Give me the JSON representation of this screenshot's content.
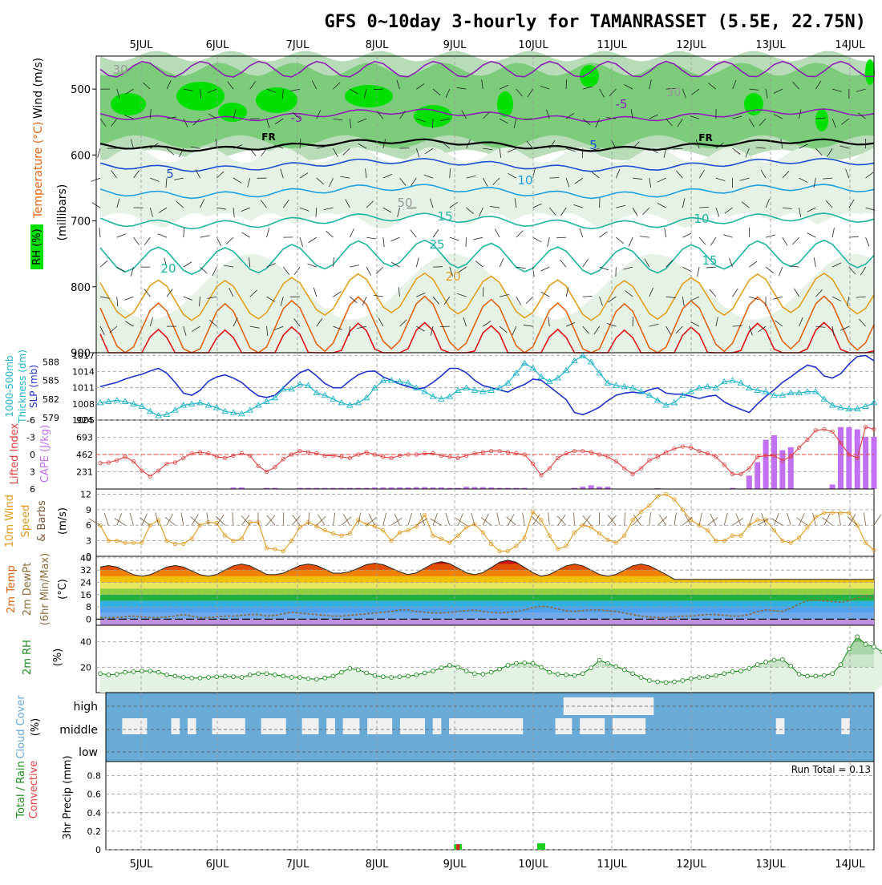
{
  "title": "GFS 0~10day 3-hourly for TAMANRASSET (5.5E, 22.75N)",
  "dates": [
    "5JUL",
    "6JUL",
    "7JUL",
    "8JUL",
    "9JUL",
    "10JUL",
    "11JUL",
    "12JUL",
    "13JUL",
    "14JUL"
  ],
  "colors": {
    "rh_dark": "#00e000",
    "rh_mid": "#7ccc7c",
    "rh_light": "#b8dcb8",
    "rh_pale": "#e6f2e6",
    "temp_purple": "#8c1fb4",
    "temp_blue": "#1e50d2",
    "temp_cyan": "#1ea0e0",
    "temp_teal": "#1eb4a0",
    "temp_gold": "#e0a020",
    "temp_orange": "#e06414",
    "temp_red": "#e01414",
    "slp": "#1e32c8",
    "thick": "#20b4c8",
    "li": "#e04040",
    "cape": "#c070f0",
    "wind10": "#e09a20",
    "dewpt": "#8c6a3c",
    "rh2m": "#208c20",
    "cloud": "#6aaad6",
    "cloud_clear": "#f0f0f0"
  },
  "chart_data": [
    {
      "type": "heatmap",
      "name": "upper_air",
      "ylabels": [
        "Temperature (°C)",
        "Wind (m/s)",
        "(millibars)",
        "RH (%)"
      ],
      "ylim": [
        900,
        450
      ],
      "yticks": [
        500,
        600,
        700,
        800,
        900
      ],
      "isotherm_labels": [
        "-5",
        "FR",
        "5",
        "10",
        "15",
        "20",
        "25",
        "FR",
        "-5",
        "5",
        "10",
        "15",
        "20",
        "30",
        "30",
        "50"
      ],
      "isotherms": [
        {
          "level": -5,
          "base": 540,
          "amp": 10
        },
        {
          "level": 0,
          "base": 585,
          "amp": 8
        },
        {
          "level": 5,
          "base": 615,
          "amp": 10
        },
        {
          "level": 10,
          "base": 655,
          "amp": 12
        },
        {
          "level": 15,
          "base": 700,
          "amp": 15
        },
        {
          "level": 20,
          "base": 755,
          "amp": 20
        },
        {
          "level": 25,
          "base": 815,
          "amp": 30
        },
        {
          "level": 30,
          "base": 860,
          "amp": 40
        },
        {
          "level": 35,
          "base": 900,
          "amp": 40
        }
      ]
    },
    {
      "type": "line",
      "name": "slp_thickness",
      "ylabels": [
        "1000-500mb",
        "Thickness (dm)",
        "SLP (mb)"
      ],
      "left_ticks": [
        "579",
        "582",
        "585",
        "588"
      ],
      "right_ticks": [
        "1005",
        "1008",
        "1011",
        "1014",
        "1017"
      ],
      "slp_range": [
        1005,
        1017.5
      ],
      "slp": [
        1011.2,
        1011.6,
        1012.0,
        1012.6,
        1013.1,
        1013.5,
        1014.1,
        1014.6,
        1013.7,
        1012.0,
        1010.0,
        1009.6,
        1010.5,
        1012.2,
        1013.0,
        1013.4,
        1012.8,
        1012.0,
        1010.6,
        1009.5,
        1009.2,
        1009.6,
        1011.0,
        1012.5,
        1013.8,
        1014.4,
        1013.2,
        1011.8,
        1011.0,
        1011.0,
        1012.3,
        1013.4,
        1014.0,
        1014.1,
        1013.0,
        1012.4,
        1011.7,
        1011.2,
        1010.8,
        1011.0,
        1012.0,
        1013.2,
        1014.6,
        1014.6,
        1013.8,
        1012.4,
        1011.4,
        1011.0,
        1010.6,
        1010.2,
        1011.0,
        1011.6,
        1012.6,
        1012.4,
        1011.2,
        1010.0,
        1008.8,
        1006.4,
        1006.0,
        1006.6,
        1007.4,
        1008.6,
        1009.6,
        1010.0,
        1010.2,
        1010.0,
        1010.6,
        1011.0,
        1010.0,
        1009.8,
        1009.8,
        1009.4,
        1009.0,
        1009.4,
        1009.6,
        1008.4,
        1007.6,
        1007.0,
        1006.4,
        1008.0,
        1009.4,
        1010.6,
        1012.0,
        1013.0,
        1014.2,
        1015.2,
        1014.8,
        1013.2,
        1012.8,
        1013.6,
        1015.4,
        1016.8,
        1017.0,
        1016.0
      ],
      "thick_range": [
        578.6,
        589.5
      ],
      "thickness": [
        581.4,
        581.6,
        581.8,
        581.6,
        581.2,
        580.8,
        580.0,
        579.3,
        579.5,
        580.2,
        581.0,
        581.2,
        581.4,
        581.0,
        580.6,
        580.0,
        579.8,
        579.6,
        580.2,
        581.0,
        581.6,
        582.2,
        583.6,
        583.6,
        584.4,
        584.2,
        583.0,
        582.6,
        582.0,
        581.4,
        581.0,
        581.4,
        582.2,
        583.8,
        585.0,
        585.0,
        584.8,
        584.6,
        583.8,
        583.2,
        582.4,
        582.0,
        582.4,
        583.4,
        583.8,
        583.4,
        583.2,
        583.4,
        583.8,
        584.6,
        586.2,
        587.8,
        587.0,
        585.6,
        584.8,
        585.4,
        586.6,
        588.2,
        589.0,
        588.0,
        586.2,
        584.6,
        584.2,
        584.0,
        583.8,
        583.2,
        582.6,
        581.8,
        581.0,
        581.4,
        582.6,
        583.2,
        583.8,
        584.0,
        583.8,
        584.8,
        585.0,
        584.6,
        583.8,
        583.4,
        583.2,
        582.6,
        582.6,
        583.0,
        583.0,
        583.2,
        583.2,
        582.0,
        581.0,
        580.6,
        580.4,
        580.4,
        580.8,
        581.4
      ]
    },
    {
      "type": "line",
      "name": "lifted_index_cape",
      "ylabels": [
        "Lifted Index",
        "CAPE (J/kg)"
      ],
      "left_ticks": [
        "-6",
        "-3",
        "0",
        "3",
        "6"
      ],
      "right_ticks": [
        "231",
        "462",
        "693",
        "924"
      ],
      "li": [
        1.5,
        1.4,
        1.0,
        0.4,
        1.2,
        2.8,
        3.8,
        2.8,
        1.6,
        1.4,
        0.6,
        -0.2,
        -0.4,
        -0.2,
        0.4,
        0.6,
        0.2,
        -0.2,
        0.2,
        2.0,
        3.0,
        2.2,
        0.8,
        0.0,
        -0.6,
        -0.4,
        -0.2,
        0.2,
        0.2,
        0.4,
        0.6,
        0.0,
        -0.4,
        0.0,
        0.4,
        0.6,
        0.2,
        0.0,
        0.0,
        -0.2,
        -0.2,
        0.2,
        0.4,
        0.6,
        0.2,
        -0.2,
        -0.4,
        -0.6,
        -0.6,
        -0.4,
        -0.2,
        0.0,
        1.6,
        3.6,
        2.4,
        0.6,
        -0.2,
        -0.6,
        -0.6,
        -0.4,
        0.0,
        0.4,
        1.2,
        2.4,
        3.4,
        2.4,
        1.0,
        0.4,
        -0.4,
        -1.0,
        -1.4,
        -1.2,
        -0.6,
        -0.2,
        0.4,
        1.8,
        3.4,
        3.4,
        2.4,
        0.4,
        0.2,
        0.2,
        1.0,
        0.4,
        -1.2,
        -2.6,
        -4.2,
        -4.4,
        -4.0,
        -2.0,
        0.0,
        0.6,
        -4.8,
        -4.4
      ],
      "cape": [
        0,
        0,
        0,
        0,
        0,
        0,
        0,
        0,
        0,
        0,
        0,
        0,
        0,
        0,
        0,
        0,
        20,
        20,
        0,
        0,
        15,
        15,
        0,
        0,
        15,
        15,
        15,
        15,
        15,
        15,
        15,
        15,
        15,
        20,
        20,
        20,
        20,
        20,
        25,
        25,
        20,
        20,
        15,
        15,
        30,
        25,
        25,
        20,
        15,
        15,
        15,
        15,
        0,
        0,
        0,
        0,
        0,
        15,
        30,
        50,
        30,
        30,
        0,
        0,
        0,
        0,
        0,
        10,
        5,
        0,
        0,
        0,
        0,
        0,
        5,
        5,
        15,
        0,
        180,
        360,
        660,
        720,
        520,
        560,
        0,
        0,
        0,
        0,
        60,
        830,
        830,
        800,
        700,
        700
      ]
    },
    {
      "type": "line",
      "name": "wind_10m",
      "ylabels": [
        "10m Wind",
        "Speed",
        "& Barbs",
        "(m/s)"
      ],
      "yticks": [
        "0",
        "3",
        "6",
        "9",
        "12"
      ],
      "ylim": [
        0,
        13
      ],
      "values": [
        6.0,
        3.0,
        3.0,
        2.6,
        2.6,
        2.6,
        6.0,
        7.0,
        3.0,
        2.4,
        2.4,
        3.4,
        6.0,
        6.6,
        6.4,
        4.0,
        3.0,
        3.4,
        6.6,
        6.6,
        1.6,
        1.4,
        1.0,
        3.0,
        5.6,
        6.6,
        5.8,
        5.0,
        4.4,
        4.0,
        4.4,
        7.0,
        6.2,
        5.8,
        5.0,
        3.0,
        4.6,
        5.0,
        5.8,
        8.0,
        4.0,
        3.4,
        2.6,
        4.0,
        5.6,
        6.2,
        4.6,
        2.4,
        1.0,
        1.0,
        2.0,
        3.6,
        8.6,
        7.0,
        4.0,
        1.4,
        2.0,
        4.6,
        6.0,
        5.6,
        4.4,
        3.2,
        2.6,
        4.0,
        7.0,
        8.6,
        9.8,
        11.6,
        12.0,
        11.0,
        9.0,
        7.0,
        6.0,
        5.0,
        3.0,
        3.0,
        4.0,
        4.0,
        6.0,
        7.0,
        7.0,
        5.0,
        3.0,
        2.6,
        3.6,
        5.6,
        7.6,
        8.4,
        8.4,
        8.4,
        8.4,
        6.0,
        2.6,
        1.2
      ]
    },
    {
      "type": "line",
      "name": "temp_2m",
      "ylabels": [
        "2m Temp",
        "2m DewPt",
        "(6hr Min/Max)",
        "(°C)"
      ],
      "yticks": [
        "0",
        "8",
        "16",
        "24",
        "32",
        "40"
      ],
      "ylim": [
        -4,
        41
      ],
      "temp_peaks": [
        35.0,
        35.0,
        36.0,
        36.0,
        36.5,
        37.5,
        38.5,
        36.0,
        36.0,
        26.0
      ],
      "temp_troughs": [
        28.0,
        28.0,
        28.0,
        29.0,
        30.0,
        29.0,
        29.0,
        28.0,
        28.0,
        26.0
      ],
      "dewpoint": [
        1.0,
        1.0,
        1.0,
        1.5,
        2.0,
        1.5,
        1.0,
        1.0,
        1.5,
        2.0,
        3.0,
        2.0,
        1.0,
        1.0,
        1.5,
        2.0,
        2.0,
        2.5,
        3.0,
        3.0,
        2.0,
        2.5,
        3.5,
        4.5,
        4.0,
        3.5,
        3.0,
        2.5,
        2.0,
        2.0,
        2.5,
        3.0,
        3.5,
        4.0,
        4.5,
        5.0,
        6.0,
        6.0,
        5.0,
        4.5,
        4.0,
        4.0,
        4.5,
        5.0,
        5.5,
        6.0,
        5.0,
        4.5,
        4.0,
        4.5,
        5.0,
        6.0,
        7.5,
        8.5,
        8.0,
        6.5,
        5.5,
        5.0,
        5.5,
        6.0,
        6.0,
        5.5,
        5.0,
        4.0,
        3.0,
        2.0,
        1.5,
        1.0,
        1.0,
        1.5,
        2.0,
        2.0,
        2.5,
        3.0,
        3.0,
        2.5,
        2.0,
        2.0,
        3.0,
        5.0,
        6.0,
        5.5,
        5.0,
        7.0,
        10.0,
        12.0,
        12.5,
        12.0,
        11.5,
        11.0,
        12.0,
        14.0,
        15.0,
        14.0
      ]
    },
    {
      "type": "area",
      "name": "rh_2m",
      "ylabels": [
        "2m RH",
        "(%)"
      ],
      "yticks": [
        "20",
        "40"
      ],
      "ylim": [
        0,
        53
      ],
      "values": [
        15.0,
        14.0,
        14.5,
        16.0,
        16.5,
        17.0,
        17.0,
        16.0,
        14.0,
        13.0,
        12.0,
        11.5,
        11.5,
        12.0,
        12.5,
        13.0,
        12.5,
        12.0,
        14.0,
        15.0,
        15.0,
        14.0,
        13.0,
        12.0,
        12.0,
        11.0,
        10.5,
        11.5,
        13.0,
        16.0,
        19.0,
        18.0,
        15.5,
        13.5,
        12.5,
        12.0,
        12.5,
        13.0,
        14.0,
        15.5,
        17.0,
        19.5,
        21.5,
        20.0,
        17.0,
        15.0,
        14.5,
        16.0,
        18.5,
        21.5,
        23.0,
        23.5,
        23.0,
        20.0,
        16.0,
        14.5,
        14.0,
        13.5,
        15.0,
        19.5,
        25.5,
        23.0,
        20.5,
        18.0,
        15.0,
        12.0,
        9.5,
        8.5,
        8.0,
        8.5,
        9.5,
        11.0,
        12.0,
        12.5,
        13.5,
        15.0,
        16.5,
        17.0,
        19.0,
        22.0,
        24.0,
        25.5,
        26.0,
        21.0,
        14.5,
        13.0,
        13.0,
        13.5,
        15.0,
        22.0,
        34.5,
        44.0,
        38.0,
        36.0,
        32.0,
        27.5,
        26.0,
        36.0,
        51.5,
        52.0,
        43.0
      ],
      "bands": [
        50,
        40,
        30,
        20
      ]
    },
    {
      "type": "heatmap",
      "name": "cloud_cover",
      "ylabels": [
        "Cloud Cover",
        "(%)"
      ],
      "yticks": [
        "high",
        "middle",
        "low"
      ],
      "clear_cells": [
        [
          2,
          1
        ],
        [
          3,
          1
        ],
        [
          4,
          1
        ],
        [
          8,
          1
        ],
        [
          10,
          1
        ],
        [
          13,
          1
        ],
        [
          14,
          1
        ],
        [
          15,
          1
        ],
        [
          16,
          1
        ],
        [
          19,
          1
        ],
        [
          20,
          1
        ],
        [
          21,
          1
        ],
        [
          24,
          1
        ],
        [
          25,
          1
        ],
        [
          27,
          1
        ],
        [
          29,
          1
        ],
        [
          30,
          1
        ],
        [
          32,
          1
        ],
        [
          33,
          1
        ],
        [
          34,
          1
        ],
        [
          36,
          1
        ],
        [
          37,
          1
        ],
        [
          38,
          1
        ],
        [
          40,
          1
        ],
        [
          42,
          1
        ],
        [
          43,
          1
        ],
        [
          44,
          1
        ],
        [
          45,
          1
        ],
        [
          46,
          1
        ],
        [
          47,
          1
        ],
        [
          48,
          1
        ],
        [
          49,
          1
        ],
        [
          50,
          1
        ],
        [
          55,
          1
        ],
        [
          56,
          1
        ],
        [
          58,
          1
        ],
        [
          59,
          1
        ],
        [
          60,
          1
        ],
        [
          62,
          1
        ],
        [
          63,
          1
        ],
        [
          64,
          1
        ],
        [
          65,
          1
        ],
        [
          82,
          1
        ],
        [
          90,
          1
        ],
        [
          56,
          2
        ],
        [
          57,
          2
        ],
        [
          58,
          2
        ],
        [
          59,
          2
        ],
        [
          60,
          2
        ],
        [
          61,
          2
        ],
        [
          62,
          2
        ],
        [
          63,
          2
        ],
        [
          64,
          2
        ],
        [
          65,
          2
        ],
        [
          66,
          2
        ]
      ]
    },
    {
      "type": "bar",
      "name": "precip_3hr",
      "ylabels": [
        "Total / Rain",
        "Convective",
        "3hr Precip (mm)"
      ],
      "yticks": [
        "0",
        "0.2",
        "0.4",
        "0.6",
        "0.8"
      ],
      "ylim": [
        0,
        1.0
      ],
      "run_total": "Run Total = 0.13",
      "total": [
        {
          "i": 43,
          "v": 0.06
        },
        {
          "i": 53,
          "v": 0.07
        }
      ],
      "convective": [
        {
          "i": 43,
          "v": 0.06
        }
      ]
    }
  ]
}
